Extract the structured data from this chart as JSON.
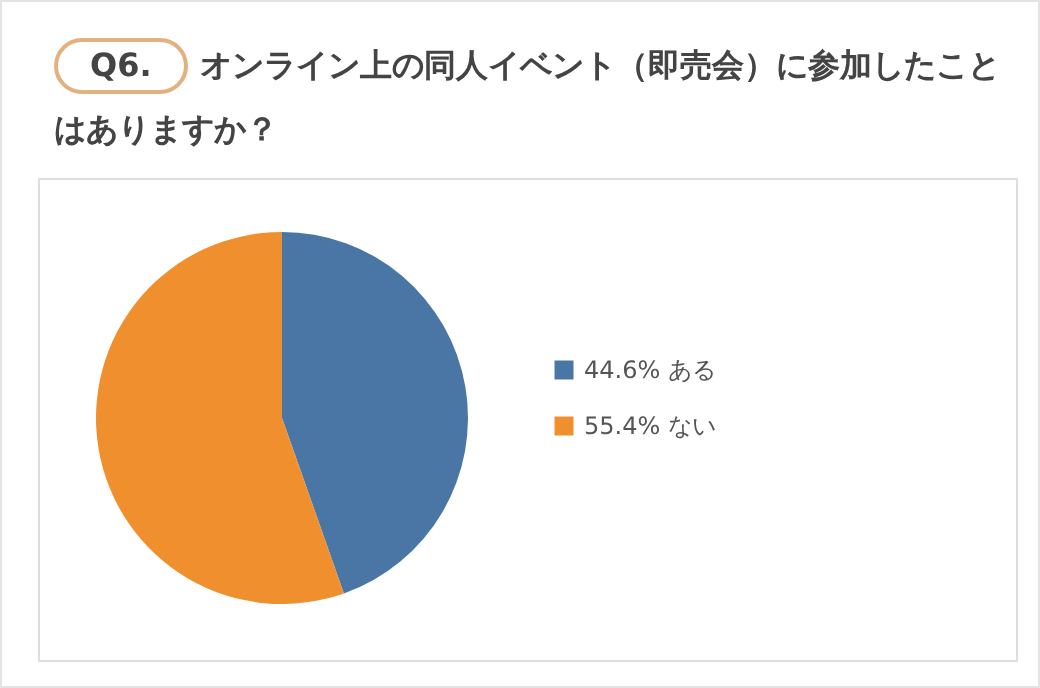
{
  "chart_data": {
    "type": "pie",
    "title": "Q6. オンライン上の同人イベント（即売会）に参加したことはありますか？",
    "categories": [
      "ある",
      "ない"
    ],
    "values": [
      44.6,
      55.4
    ],
    "value_labels": [
      "44.6%",
      "55.4%"
    ],
    "colors": [
      "#4a76a6",
      "#f08f2e"
    ],
    "legend": "right"
  }
}
